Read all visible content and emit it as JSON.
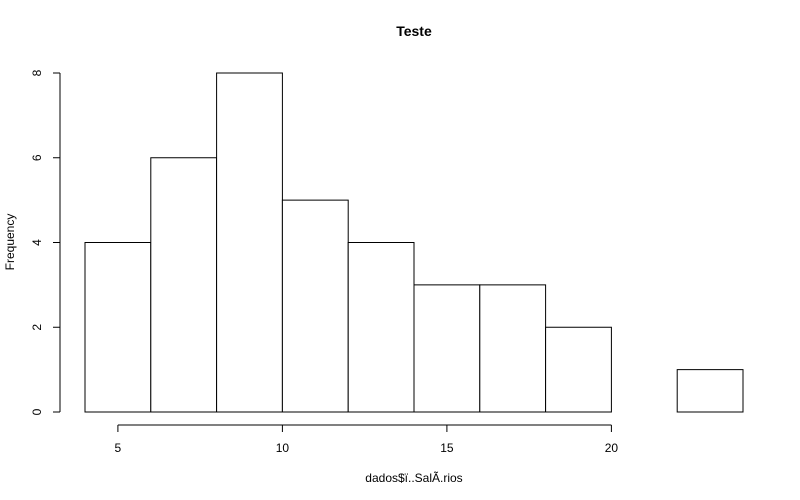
{
  "chart_data": {
    "type": "bar",
    "title": "Teste",
    "xlabel": "dados$ï..SalÃ.rios",
    "ylabel": "Frequency",
    "bins": [
      {
        "start": 4,
        "end": 6,
        "count": 4
      },
      {
        "start": 6,
        "end": 8,
        "count": 6
      },
      {
        "start": 8,
        "end": 10,
        "count": 8
      },
      {
        "start": 10,
        "end": 12,
        "count": 5
      },
      {
        "start": 12,
        "end": 14,
        "count": 4
      },
      {
        "start": 14,
        "end": 16,
        "count": 3
      },
      {
        "start": 16,
        "end": 18,
        "count": 3
      },
      {
        "start": 18,
        "end": 20,
        "count": 2
      },
      {
        "start": 20,
        "end": 22,
        "count": 0
      },
      {
        "start": 22,
        "end": 24,
        "count": 1
      }
    ],
    "xlim": [
      4,
      24
    ],
    "ylim": [
      0,
      8
    ],
    "x_ticks": [
      5,
      10,
      15,
      20
    ],
    "y_ticks": [
      0,
      2,
      4,
      6,
      8
    ],
    "grid": false,
    "legend": "none",
    "colors": {
      "bar_fill": "#ffffff",
      "bar_stroke": "#000000"
    }
  }
}
